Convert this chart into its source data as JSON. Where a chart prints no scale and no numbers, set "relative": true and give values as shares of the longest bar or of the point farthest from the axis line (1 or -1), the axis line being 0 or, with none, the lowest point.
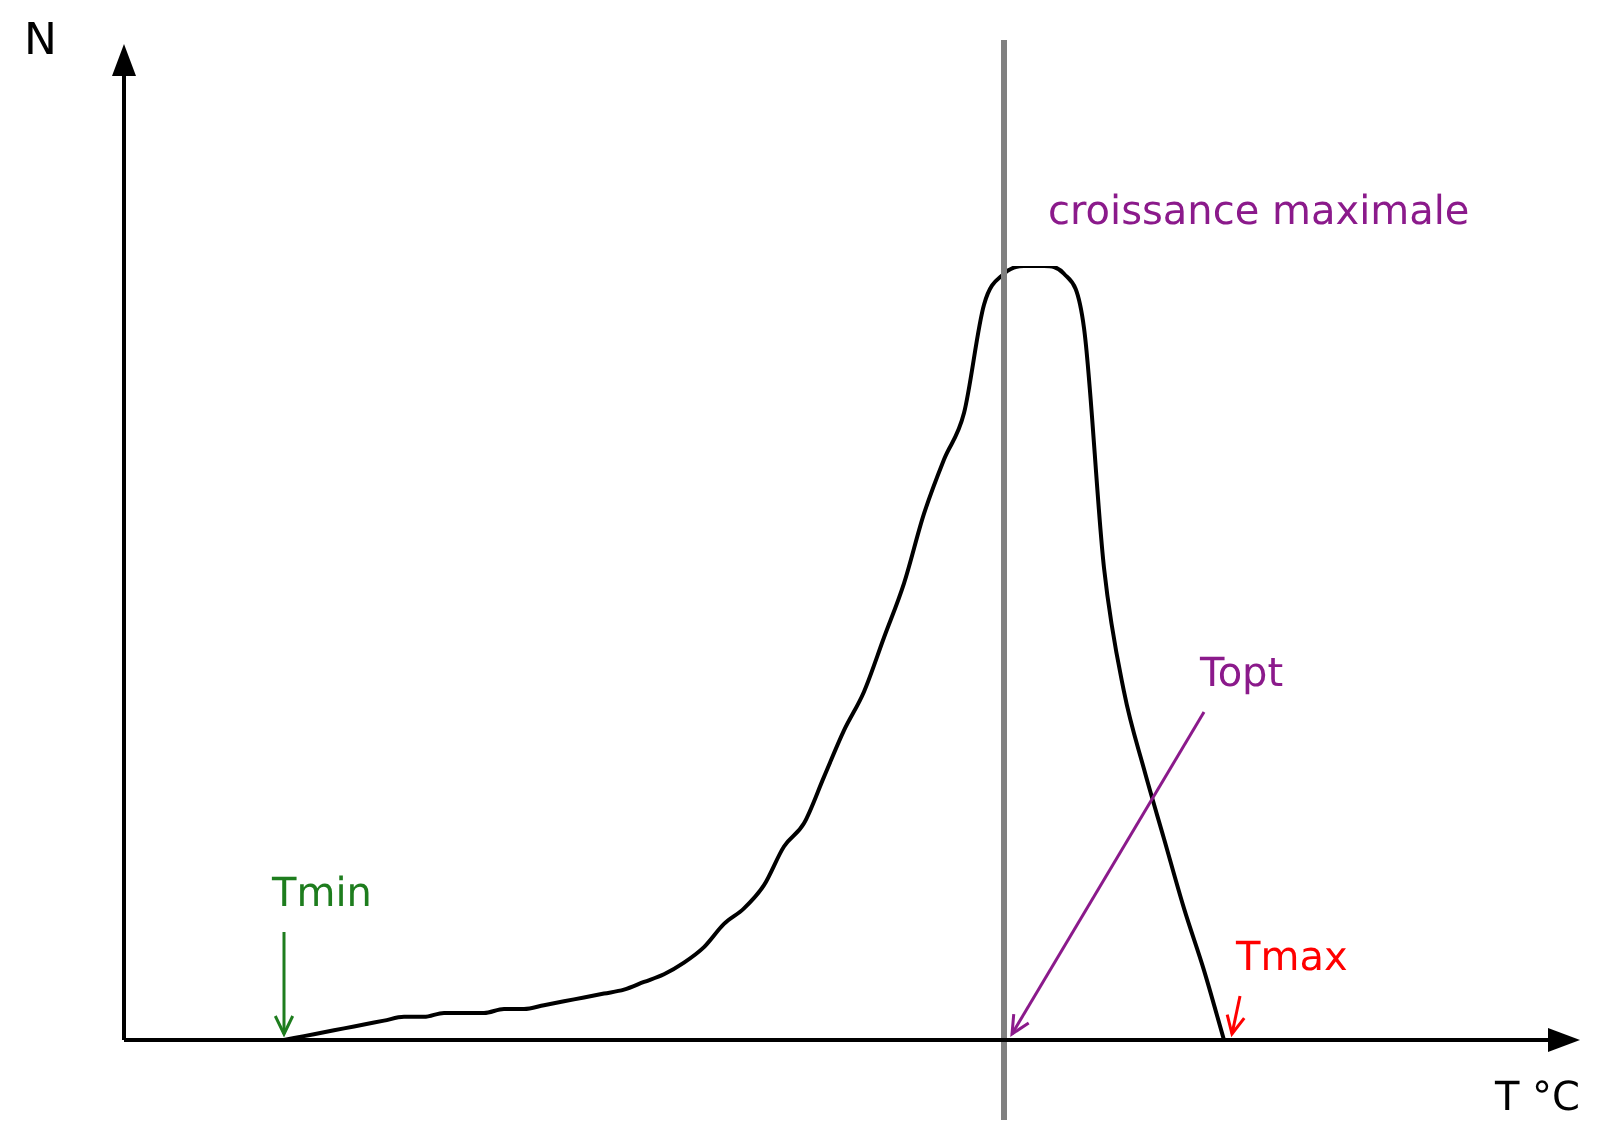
{
  "chart_data": {
    "type": "line",
    "relative": true,
    "xlabel": "T °C",
    "ylabel": "N",
    "grid": false,
    "legend": false,
    "marker": "none",
    "line_style": "solid",
    "categories": [
      null,
      null,
      null,
      null,
      null,
      null,
      null,
      null,
      null,
      null,
      null,
      null,
      null,
      null,
      null,
      null,
      null,
      null,
      null,
      null,
      null,
      null,
      null,
      null,
      null,
      null,
      null,
      null,
      null,
      null,
      null,
      null,
      null,
      null,
      null,
      null,
      null,
      null,
      null,
      null,
      null,
      null,
      null,
      null,
      null,
      null,
      null,
      null,
      null,
      null,
      null,
      null,
      null,
      null,
      null,
      null,
      null,
      null,
      null,
      null,
      null,
      null,
      null,
      null,
      null,
      null,
      null,
      null,
      null,
      null,
      null,
      null,
      null
    ],
    "series": [
      {
        "color": "#000000",
        "values": [
          null,
          null,
          null,
          null,
          null,
          null,
          null,
          null,
          0,
          0.005,
          0.01,
          0.015,
          0.02,
          0.025,
          0.03,
          0.03,
          0.035,
          0.035,
          0.035,
          0.04,
          0.04,
          0.045,
          0.05,
          0.055,
          0.06,
          0.065,
          0.075,
          0.085,
          0.1,
          0.12,
          0.15,
          0.17,
          0.2,
          0.25,
          0.28,
          0.34,
          0.4,
          0.45,
          0.52,
          0.59,
          0.68,
          0.75,
          0.81,
          0.95,
          0.99,
          1,
          1,
          0.99,
          0.92,
          0.61,
          0.45,
          0.35,
          0.26,
          0.17,
          0.09,
          0,
          null,
          null,
          null,
          null,
          null,
          null,
          null,
          null,
          null,
          null,
          null,
          null,
          null,
          null,
          null,
          null,
          null
        ]
      }
    ],
    "annotations": [
      "croissance maximale",
      "Tmin",
      "Topt",
      "Tmax"
    ]
  }
}
